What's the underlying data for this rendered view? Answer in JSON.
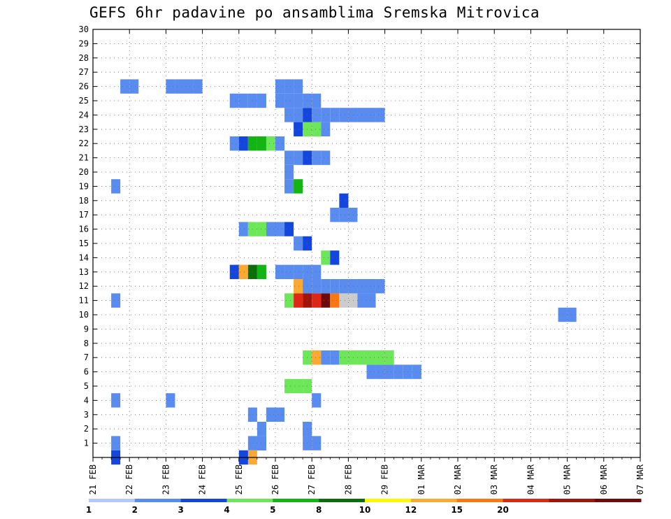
{
  "title": "GEFS 6hr padavine po ansamblima Sremska Mitrovica",
  "chart_data": {
    "type": "heatmap",
    "title": "GEFS 6hr padavine po ansamblima Sremska Mitrovica",
    "x_tick_labels": [
      "21 FEB",
      "22 FEB",
      "23 FEB",
      "24 FEB",
      "25 FEB",
      "26 FEB",
      "27 FEB",
      "28 FEB",
      "29 FEB",
      "01 MAR",
      "02 MAR",
      "03 MAR",
      "04 MAR",
      "05 MAR",
      "06 MAR",
      "07 MAR"
    ],
    "y_tick_labels": [
      "1",
      "2",
      "3",
      "4",
      "5",
      "6",
      "7",
      "8",
      "9",
      "10",
      "11",
      "12",
      "13",
      "14",
      "15",
      "16",
      "17",
      "18",
      "19",
      "20",
      "21",
      "22",
      "23",
      "24",
      "25",
      "26",
      "27",
      "28",
      "29",
      "30"
    ],
    "xlim_days": [
      0,
      15
    ],
    "ylim_members": [
      0,
      30
    ],
    "time_step_hours": 6,
    "grid": true,
    "colorbar": {
      "position": "bottom",
      "tick_labels": [
        "1",
        "2",
        "3",
        "4",
        "5",
        "8",
        "10",
        "12",
        "15",
        "20"
      ],
      "colors": [
        "#b4c8fa",
        "#5a8cf0",
        "#1446dc",
        "#6ee65a",
        "#14b414",
        "#0a6e0a",
        "#fafa00",
        "#faaa32",
        "#fa7814",
        "#dc2814",
        "#a0140a",
        "#6e0a0a"
      ]
    },
    "cells": [
      [
        2,
        0,
        2
      ],
      [
        2,
        1,
        1
      ],
      [
        17,
        0,
        7
      ],
      [
        16,
        0,
        2
      ],
      [
        17,
        1,
        1
      ],
      [
        18,
        1,
        2
      ],
      [
        23,
        1,
        1
      ],
      [
        23,
        2,
        1
      ],
      [
        24,
        1,
        1
      ],
      [
        23,
        2,
        1
      ],
      [
        24,
        4,
        1
      ],
      [
        8,
        4,
        1
      ],
      [
        18,
        1,
        1
      ],
      [
        18,
        2,
        1
      ],
      [
        17,
        3,
        1
      ],
      [
        19,
        3,
        1
      ],
      [
        20,
        3,
        1
      ],
      [
        19,
        3,
        1
      ],
      [
        2,
        4,
        1
      ],
      [
        21,
        5,
        3
      ],
      [
        22,
        5,
        3
      ],
      [
        23,
        5,
        3
      ],
      [
        31,
        6,
        1
      ],
      [
        32,
        6,
        1
      ],
      [
        33,
        6,
        1
      ],
      [
        34,
        6,
        1
      ],
      [
        35,
        6,
        1
      ],
      [
        30,
        6,
        1
      ],
      [
        23,
        7,
        3
      ],
      [
        24,
        7,
        7
      ],
      [
        25,
        7,
        1
      ],
      [
        26,
        7,
        1
      ],
      [
        27,
        7,
        3
      ],
      [
        28,
        7,
        3
      ],
      [
        29,
        7,
        3
      ],
      [
        30,
        7,
        3
      ],
      [
        31,
        7,
        3
      ],
      [
        32,
        7,
        3
      ],
      [
        51,
        10,
        1
      ],
      [
        52,
        10,
        1
      ],
      [
        2,
        11,
        1
      ],
      [
        21,
        11,
        3
      ],
      [
        22,
        11,
        9
      ],
      [
        23,
        11,
        10
      ],
      [
        24,
        11,
        9
      ],
      [
        25,
        11,
        11
      ],
      [
        26,
        11,
        8
      ],
      [
        27,
        11,
        12
      ],
      [
        28,
        11,
        12
      ],
      [
        29,
        11,
        1
      ],
      [
        30,
        11,
        1
      ],
      [
        22,
        12,
        7
      ],
      [
        23,
        12,
        1
      ],
      [
        24,
        12,
        1
      ],
      [
        25,
        12,
        1
      ],
      [
        26,
        12,
        1
      ],
      [
        27,
        12,
        1
      ],
      [
        28,
        12,
        1
      ],
      [
        29,
        12,
        1
      ],
      [
        30,
        12,
        1
      ],
      [
        31,
        12,
        1
      ],
      [
        15,
        13,
        2
      ],
      [
        16,
        13,
        7
      ],
      [
        17,
        13,
        5
      ],
      [
        18,
        13,
        4
      ],
      [
        20,
        13,
        1
      ],
      [
        21,
        13,
        1
      ],
      [
        22,
        13,
        1
      ],
      [
        23,
        13,
        1
      ],
      [
        24,
        13,
        1
      ],
      [
        25,
        14,
        3
      ],
      [
        26,
        14,
        2
      ],
      [
        22,
        15,
        1
      ],
      [
        23,
        15,
        2
      ],
      [
        16,
        16,
        1
      ],
      [
        17,
        16,
        3
      ],
      [
        18,
        16,
        3
      ],
      [
        19,
        16,
        1
      ],
      [
        20,
        16,
        1
      ],
      [
        21,
        16,
        2
      ],
      [
        26,
        17,
        1
      ],
      [
        27,
        17,
        1
      ],
      [
        28,
        17,
        1
      ],
      [
        27,
        18,
        2
      ],
      [
        2,
        19,
        1
      ],
      [
        21,
        19,
        1
      ],
      [
        22,
        19,
        4
      ],
      [
        21,
        20,
        1
      ],
      [
        21,
        21,
        1
      ],
      [
        22,
        21,
        1
      ],
      [
        23,
        21,
        2
      ],
      [
        24,
        21,
        1
      ],
      [
        25,
        21,
        1
      ],
      [
        15,
        22,
        1
      ],
      [
        16,
        22,
        2
      ],
      [
        17,
        22,
        4
      ],
      [
        18,
        22,
        4
      ],
      [
        19,
        22,
        3
      ],
      [
        20,
        22,
        1
      ],
      [
        22,
        23,
        2
      ],
      [
        23,
        23,
        3
      ],
      [
        24,
        23,
        3
      ],
      [
        25,
        23,
        1
      ],
      [
        21,
        24,
        1
      ],
      [
        22,
        24,
        1
      ],
      [
        23,
        24,
        2
      ],
      [
        24,
        24,
        1
      ],
      [
        25,
        24,
        1
      ],
      [
        26,
        24,
        1
      ],
      [
        27,
        24,
        1
      ],
      [
        28,
        24,
        1
      ],
      [
        29,
        24,
        1
      ],
      [
        30,
        24,
        1
      ],
      [
        31,
        24,
        1
      ],
      [
        15,
        25,
        1
      ],
      [
        16,
        25,
        1
      ],
      [
        17,
        25,
        1
      ],
      [
        18,
        25,
        1
      ],
      [
        20,
        25,
        1
      ],
      [
        21,
        25,
        1
      ],
      [
        22,
        25,
        1
      ],
      [
        23,
        25,
        1
      ],
      [
        24,
        25,
        1
      ],
      [
        3,
        26,
        1
      ],
      [
        4,
        26,
        1
      ],
      [
        8,
        26,
        1
      ],
      [
        9,
        26,
        1
      ],
      [
        10,
        26,
        1
      ],
      [
        11,
        26,
        1
      ],
      [
        20,
        26,
        1
      ],
      [
        21,
        26,
        1
      ],
      [
        22,
        26,
        1
      ]
    ]
  }
}
